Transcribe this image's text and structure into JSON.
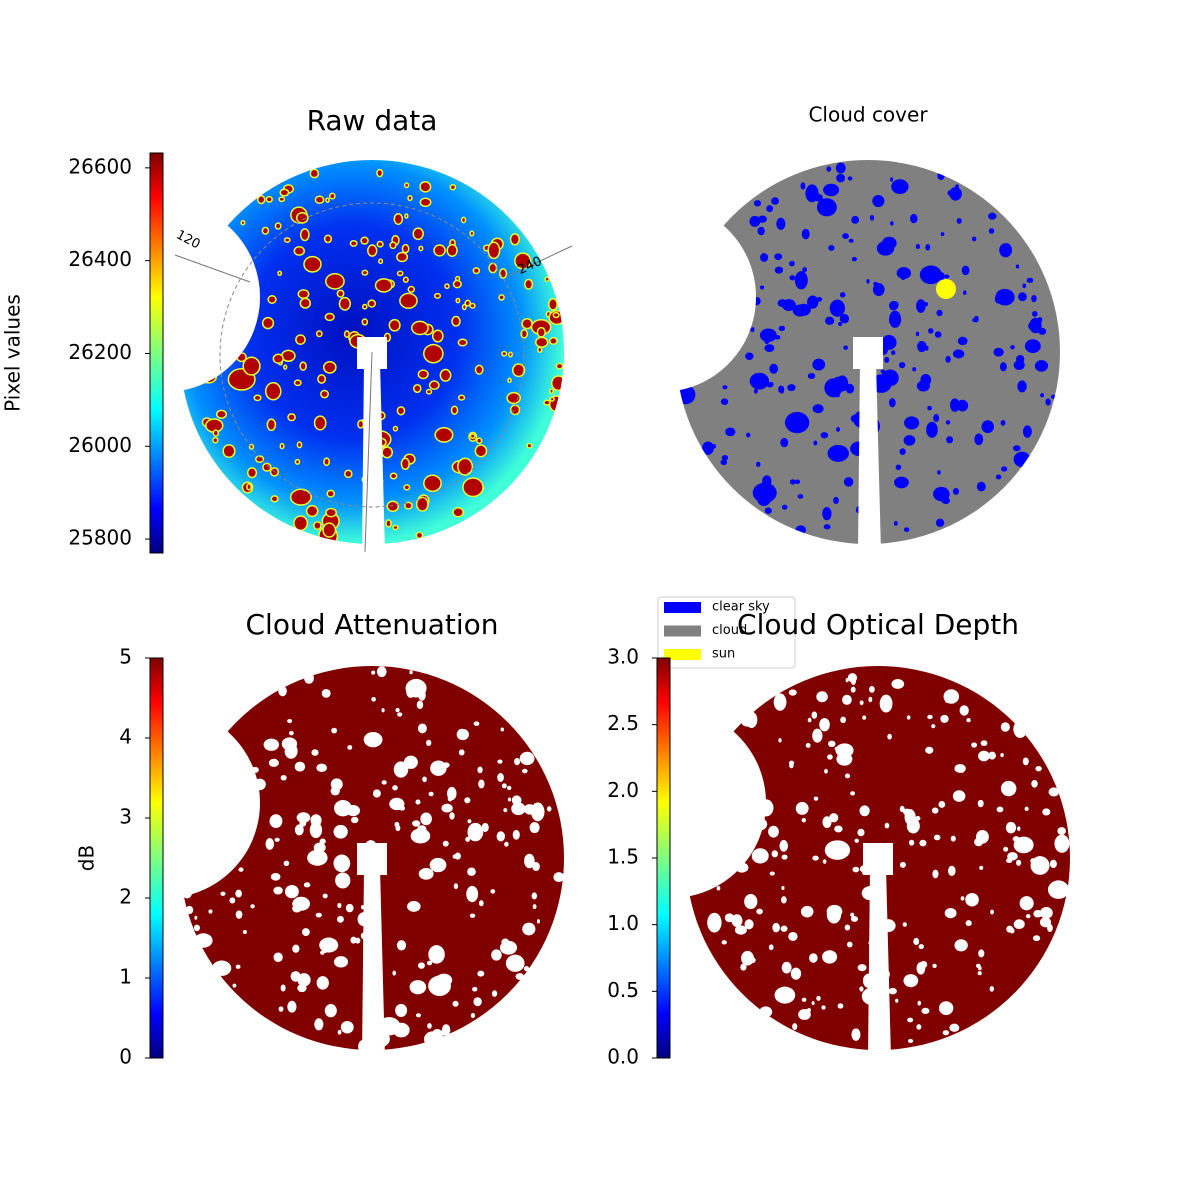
{
  "chart_data": [
    {
      "type": "image",
      "title": "Raw data",
      "colorbar_label": "Pixel values",
      "colormap": "jet",
      "ylim": [
        25770,
        26632
      ],
      "yticks": [
        25800,
        26000,
        26200,
        26400,
        26600
      ],
      "annotations": [
        "120",
        "240"
      ]
    },
    {
      "type": "mask",
      "title": "Cloud cover",
      "fill": "#808080",
      "legend": [
        {
          "name": "clear sky",
          "color": "#0000ff"
        },
        {
          "name": "cloud",
          "color": "#808080"
        },
        {
          "name": "sun",
          "color": "#ffff00"
        }
      ],
      "legend_position": "lower left"
    },
    {
      "type": "image",
      "title": "Cloud Attenuation",
      "colorbar_label": "dB",
      "colormap": "jet",
      "fill": "#800000",
      "ylim": [
        0,
        5
      ],
      "yticks": [
        0,
        1,
        2,
        3,
        4,
        5
      ]
    },
    {
      "type": "image",
      "title": "Cloud Optical Depth",
      "colormap": "jet",
      "fill": "#800000",
      "ylim": [
        0,
        3
      ],
      "yticks": [
        {
          "value": 0,
          "label": "0.0"
        },
        0.5,
        {
          "value": 1,
          "label": "1.0"
        },
        1.5,
        {
          "value": 2,
          "label": "2.0"
        },
        2.5,
        {
          "value": 3,
          "label": "3.0"
        }
      ]
    }
  ]
}
